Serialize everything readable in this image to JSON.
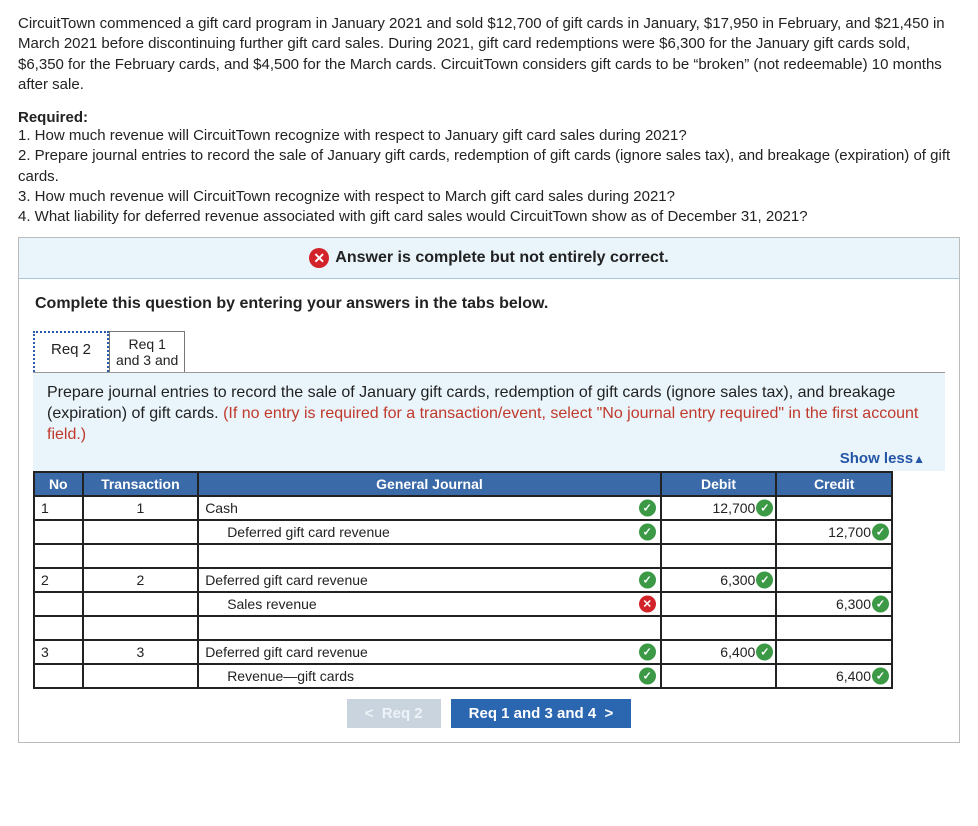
{
  "problem": {
    "intro": "CircuitTown commenced a gift card program in January 2021 and sold $12,700 of gift cards in January, $17,950 in February, and $21,450 in March 2021 before discontinuing further gift card sales. During 2021, gift card redemptions were $6,300 for the January gift cards sold, $6,350 for the February cards, and $4,500 for the March cards. CircuitTown considers gift cards to be “broken” (not redeemable) 10 months after sale.",
    "required_label": "Required:",
    "reqs": [
      "1. How much revenue will CircuitTown recognize with respect to January gift card sales during 2021?",
      "2. Prepare journal entries to record the sale of January gift cards, redemption of gift cards (ignore sales tax), and breakage (expiration) of gift cards.",
      "3. How much revenue will CircuitTown recognize with respect to March gift card sales during 2021?",
      "4. What liability for deferred revenue associated with gift card sales would CircuitTown show as of December 31, 2021?"
    ]
  },
  "status_banner": "Answer is complete but not entirely correct.",
  "instruction": "Complete this question by entering your answers in the tabs below.",
  "tabs": {
    "active": "Req 2",
    "other_line1": "Req 1",
    "other_line2": "and 3 and"
  },
  "tab_prompt": {
    "black": "Prepare journal entries to record the sale of January gift cards, redemption of gift cards (ignore sales tax), and breakage (expiration) of gift cards. ",
    "red": "(If no entry is required for a transaction/event, select \"No journal entry required\" in the first account field.)"
  },
  "show_less": "Show less",
  "table": {
    "headers": {
      "no": "No",
      "trans": "Transaction",
      "gj": "General Journal",
      "debit": "Debit",
      "credit": "Credit"
    },
    "rows": [
      {
        "no": "1",
        "trans": "1",
        "acct": "Cash",
        "indent": false,
        "acct_mark": "ok",
        "debit": "12,700",
        "debit_mark": "ok",
        "credit": "",
        "credit_mark": ""
      },
      {
        "no": "",
        "trans": "",
        "acct": "Deferred gift card revenue",
        "indent": true,
        "acct_mark": "ok",
        "debit": "",
        "debit_mark": "",
        "credit": "12,700",
        "credit_mark": "ok"
      },
      {
        "no": "",
        "trans": "",
        "acct": "",
        "indent": false,
        "acct_mark": "",
        "debit": "",
        "debit_mark": "",
        "credit": "",
        "credit_mark": ""
      },
      {
        "no": "2",
        "trans": "2",
        "acct": "Deferred gift card revenue",
        "indent": false,
        "acct_mark": "ok",
        "debit": "6,300",
        "debit_mark": "ok",
        "credit": "",
        "credit_mark": ""
      },
      {
        "no": "",
        "trans": "",
        "acct": "Sales revenue",
        "indent": true,
        "acct_mark": "no",
        "debit": "",
        "debit_mark": "",
        "credit": "6,300",
        "credit_mark": "ok"
      },
      {
        "no": "",
        "trans": "",
        "acct": "",
        "indent": false,
        "acct_mark": "",
        "debit": "",
        "debit_mark": "",
        "credit": "",
        "credit_mark": ""
      },
      {
        "no": "3",
        "trans": "3",
        "acct": "Deferred gift card revenue",
        "indent": false,
        "acct_mark": "ok",
        "debit": "6,400",
        "debit_mark": "ok",
        "credit": "",
        "credit_mark": ""
      },
      {
        "no": "",
        "trans": "",
        "acct": "Revenue—gift cards",
        "indent": true,
        "acct_mark": "ok",
        "debit": "",
        "debit_mark": "",
        "credit": "6,400",
        "credit_mark": "ok"
      }
    ]
  },
  "nav": {
    "prev": "Req 2",
    "next": "Req 1 and 3 and 4"
  },
  "colors": {
    "banner_bg": "#e9f4fb",
    "header_bg": "#3a6aa8",
    "next_btn_bg": "#2b66b0",
    "prev_btn_bg": "#c9d4df",
    "ok": "#3c9a46",
    "no": "#d2232a",
    "link": "#2556a6"
  }
}
